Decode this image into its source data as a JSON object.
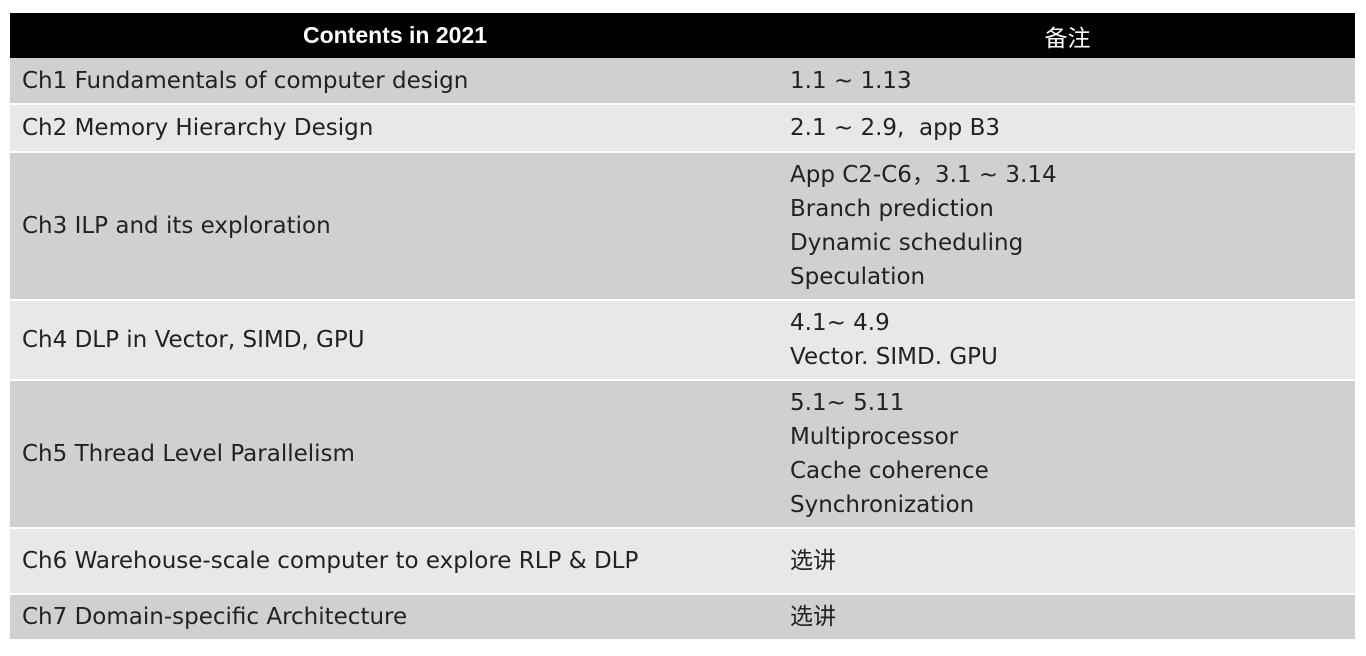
{
  "table": {
    "headers": [
      "Contents in 2021",
      "备注"
    ],
    "rows": [
      {
        "chapter": "Ch1 Fundamentals of computer design",
        "notes": [
          "1.1 ~ 1.13"
        ]
      },
      {
        "chapter": "Ch2 Memory Hierarchy Design",
        "notes": [
          "2.1 ~ 2.9,  app B3"
        ]
      },
      {
        "chapter": "Ch3 ILP and its exploration",
        "notes": [
          "App C2-C6，3.1 ~ 3.14",
          "Branch prediction",
          "Dynamic scheduling",
          "Speculation"
        ]
      },
      {
        "chapter": "Ch4 DLP in Vector, SIMD, GPU",
        "notes": [
          "4.1~ 4.9",
          "Vector. SIMD. GPU"
        ]
      },
      {
        "chapter": "Ch5 Thread Level Parallelism",
        "notes": [
          "5.1~ 5.11",
          "Multiprocessor",
          "Cache coherence",
          "Synchronization"
        ]
      },
      {
        "chapter": "Ch6 Warehouse-scale computer to explore  RLP & DLP",
        "notes": [
          "选讲"
        ]
      },
      {
        "chapter": "Ch7 Domain-specific Architecture",
        "notes": [
          "选讲"
        ]
      }
    ]
  },
  "colors": {
    "header_bg": "#000000",
    "header_text": "#ffffff",
    "row_dark": "#d0d0d0",
    "row_light": "#e8e8e8"
  }
}
